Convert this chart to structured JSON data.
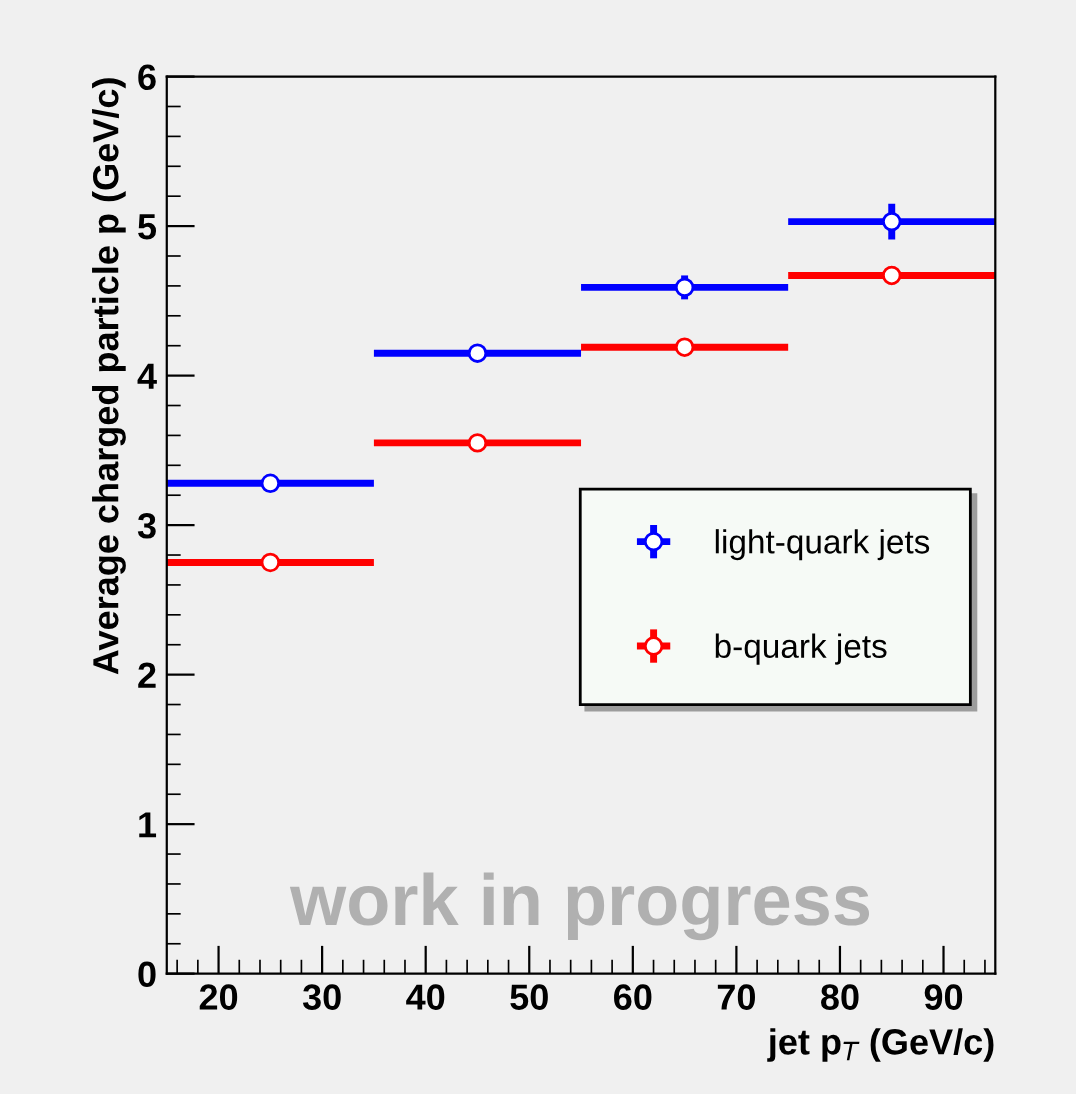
{
  "chart_data": {
    "type": "scatter",
    "xlabel": "jet p$_{T}$ (GeV/c)",
    "ylabel": "Average charged particle p (GeV/c)",
    "x": [
      25,
      45,
      65,
      85
    ],
    "xlim": [
      15,
      95
    ],
    "xticks": [
      20,
      30,
      40,
      50,
      60,
      70,
      80,
      90
    ],
    "ylim": [
      0,
      6
    ],
    "yticks": [
      0,
      1,
      2,
      3,
      4,
      5,
      6
    ],
    "series": [
      {
        "name": "light-quark jets",
        "color": "#0000ff",
        "values": [
          3.28,
          4.15,
          4.59,
          5.03
        ],
        "errors": [
          0.03,
          0.03,
          0.08,
          0.12
        ],
        "xerrors": [
          10,
          10,
          10,
          10
        ]
      },
      {
        "name": "b-quark jets",
        "color": "#ff0000",
        "values": [
          2.75,
          3.55,
          4.19,
          4.67
        ],
        "errors": [
          0.03,
          0.03,
          0.03,
          0.06
        ],
        "xerrors": [
          10,
          10,
          10,
          10
        ]
      }
    ],
    "marker": "circle",
    "grid": false,
    "legend": "right",
    "annotations": [
      "work in progress"
    ]
  }
}
